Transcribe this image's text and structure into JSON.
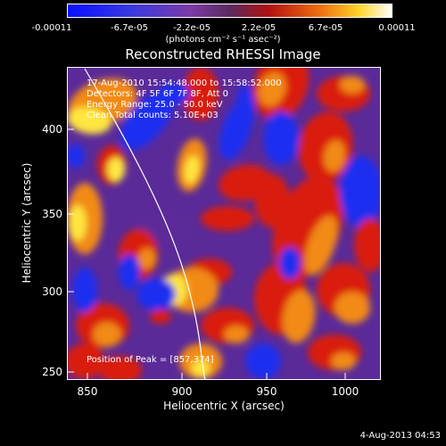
{
  "colorbar": {
    "ticks": [
      "-0.00011",
      "-6.7e-05",
      "-2.2e-05",
      "2.2e-05",
      "6.7e-05",
      "0.00011"
    ],
    "units": "(photons cm⁻² s⁻¹ asec⁻²)"
  },
  "title": "Reconstructed RHESSI Image",
  "info": {
    "time": "17-Aug-2010 15:54:48.000 to 15:58:52.000",
    "detectors": "Detectors: 4F 5F 6F 7F 8F, Att 0",
    "energy": "Energy Range: 25.0 - 50.0 keV",
    "clean": "Clean    Total counts: 5.10E+03"
  },
  "peak": "Position of Peak = [857,374]",
  "axes": {
    "xlabel": "Heliocentric X (arcsec)",
    "ylabel": "Heliocentric Y (arcsec)",
    "xticks": [
      "850",
      "900",
      "950",
      "1000"
    ],
    "yticks": [
      "400",
      "350",
      "300",
      "250"
    ]
  },
  "datestamp": "4-Aug-2013 04:53",
  "colors": {
    "blue": "#1a2ef0",
    "purple": "#5b2a99",
    "red": "#d91b0f",
    "orange": "#f28a12",
    "yellow": "#ffe640",
    "white": "#ffffff"
  }
}
